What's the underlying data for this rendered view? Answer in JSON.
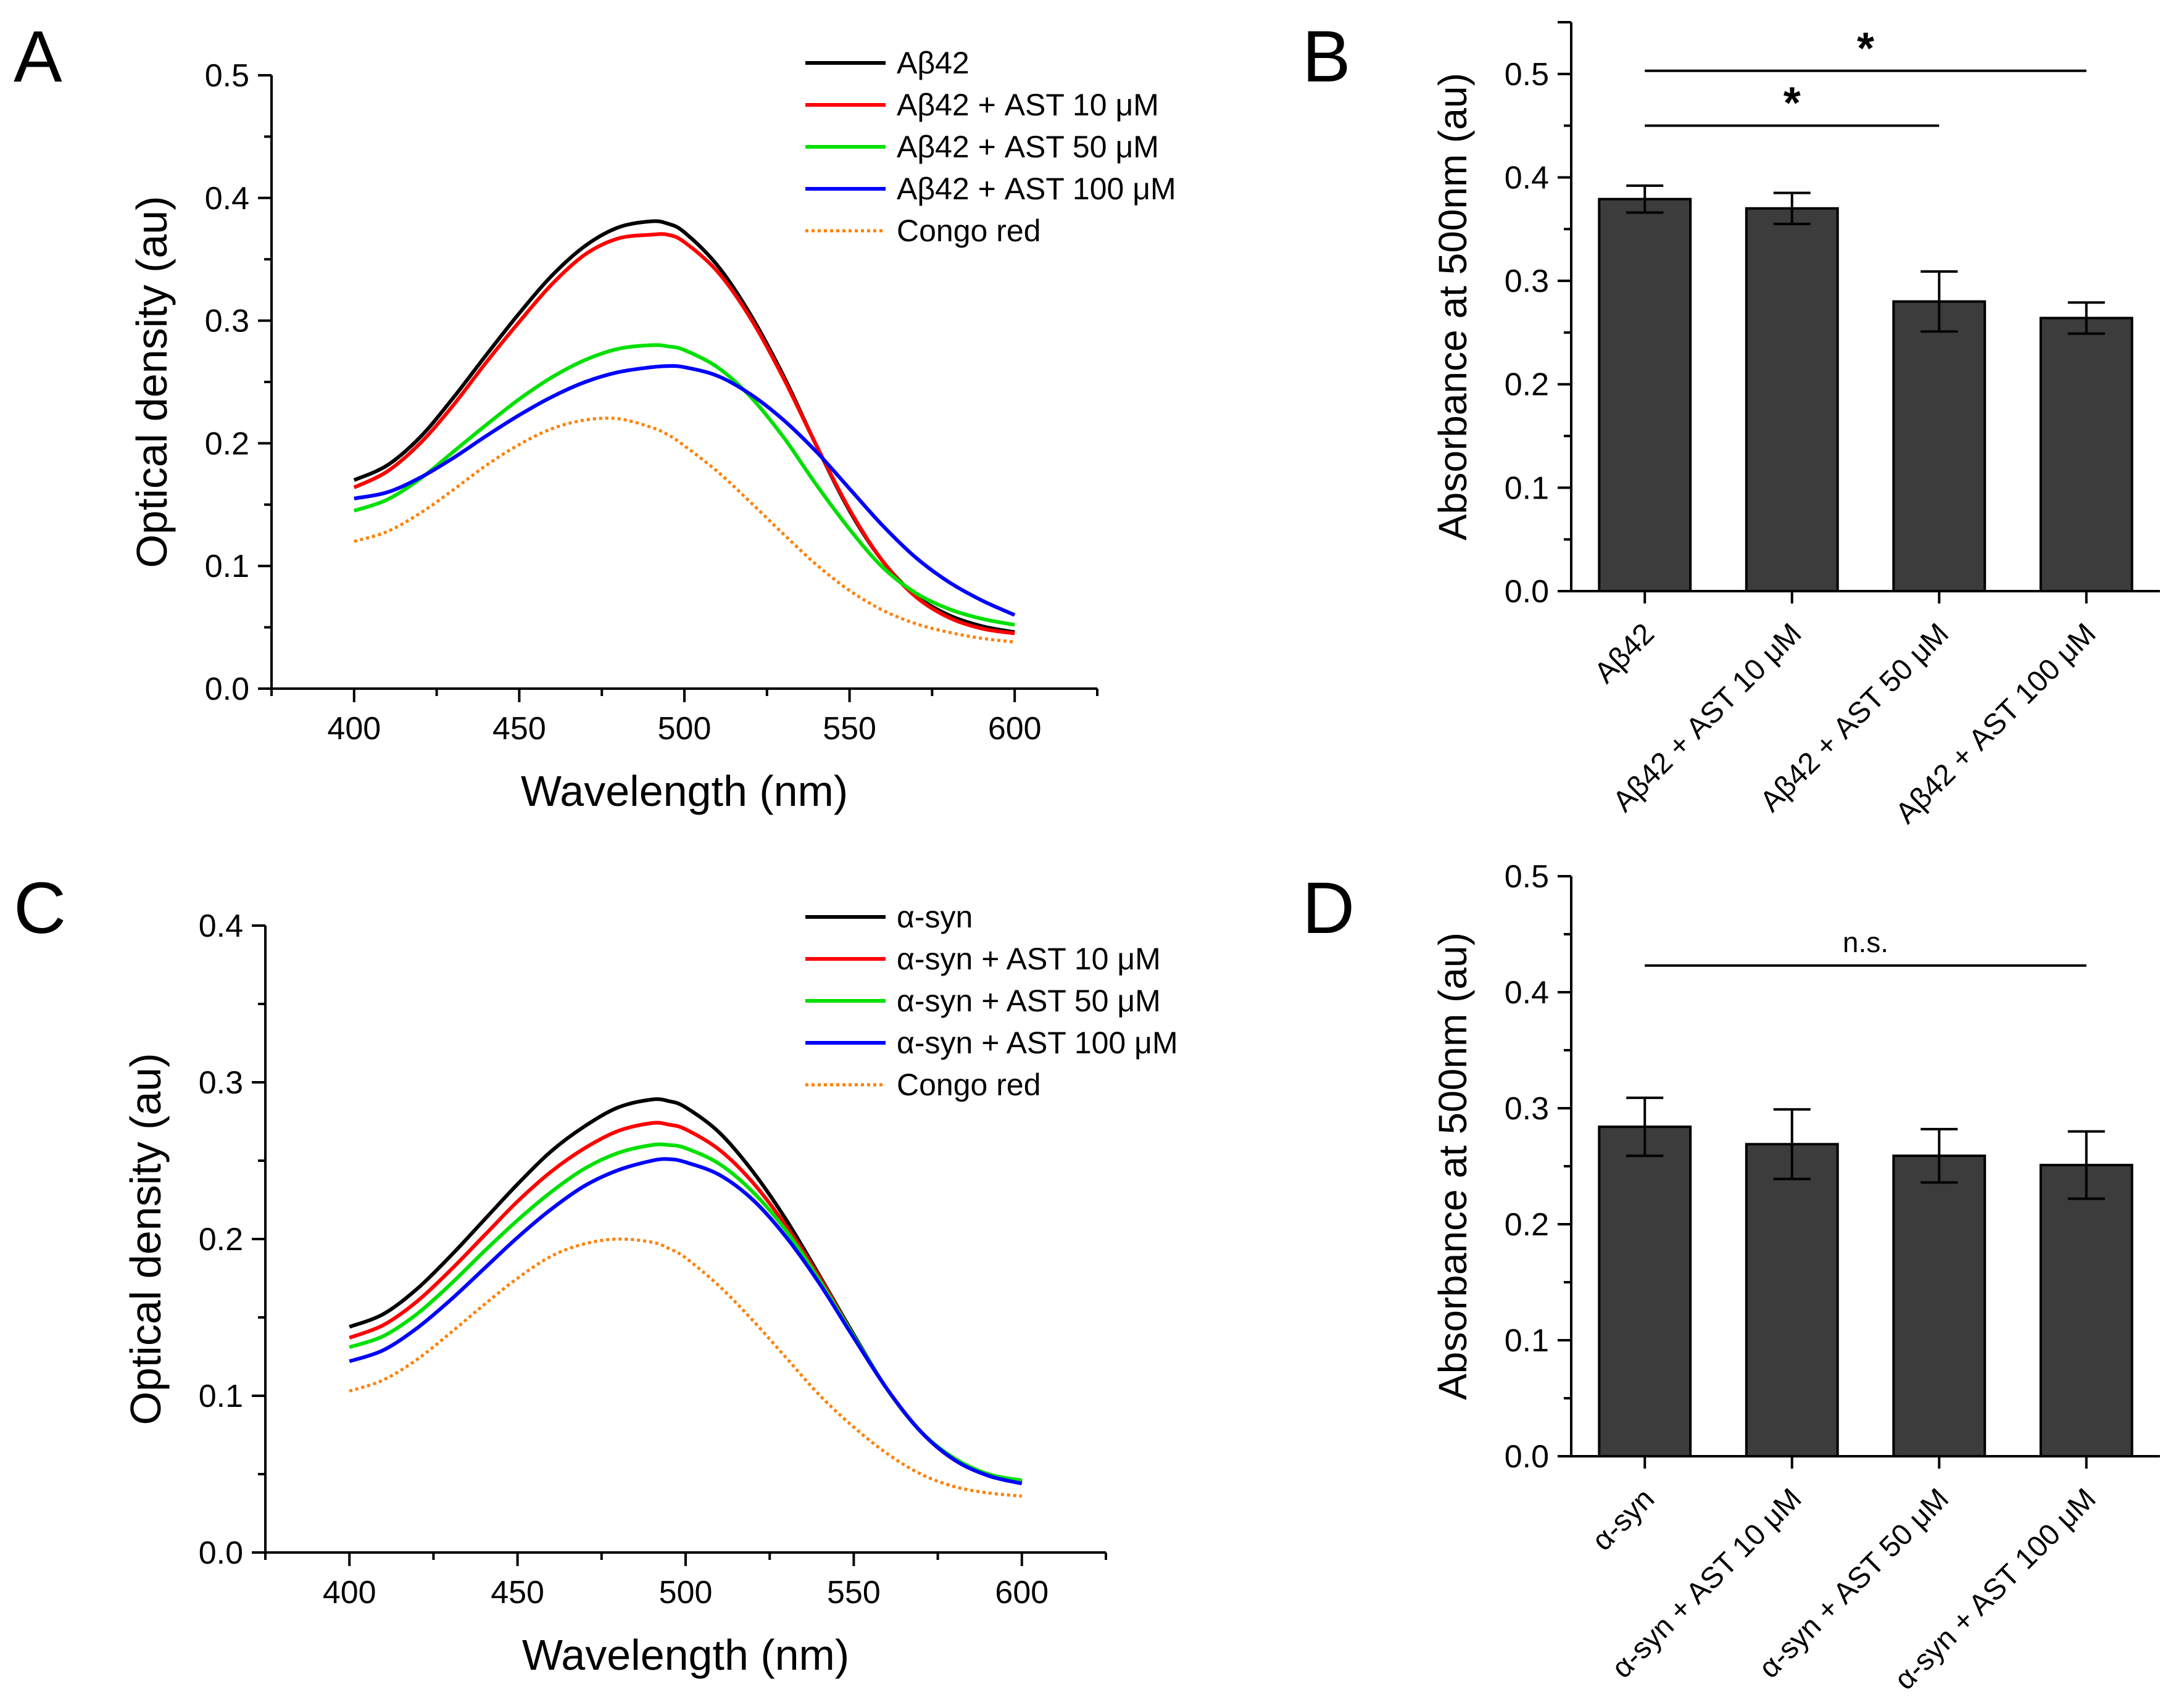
{
  "colors": {
    "black": "#000000",
    "red": "#ff0000",
    "green": "#00e000",
    "blue": "#0000ff",
    "orange": "#ff8000",
    "bar_fill": "#3c3c3c"
  },
  "chart_data": [
    {
      "panel": "A",
      "type": "line",
      "title": "",
      "xlabel": "Wavelength (nm)",
      "ylabel": "Optical density (au)",
      "xlim": [
        375,
        625
      ],
      "ylim": [
        0,
        0.5
      ],
      "xticks": [
        "400",
        "450",
        "500",
        "550",
        "600"
      ],
      "yticks": [
        "0.0",
        "0.1",
        "0.2",
        "0.3",
        "0.4",
        "0.5"
      ],
      "legend_position": "top-right",
      "x": [
        400,
        410,
        420,
        430,
        440,
        450,
        460,
        470,
        480,
        490,
        495,
        500,
        510,
        520,
        530,
        540,
        550,
        560,
        570,
        580,
        590,
        600
      ],
      "series": [
        {
          "name": "Aβ42",
          "color": "black",
          "dash": "solid",
          "values": [
            0.17,
            0.182,
            0.205,
            0.237,
            0.272,
            0.306,
            0.337,
            0.361,
            0.376,
            0.381,
            0.379,
            0.372,
            0.345,
            0.305,
            0.255,
            0.198,
            0.145,
            0.104,
            0.076,
            0.06,
            0.051,
            0.046
          ]
        },
        {
          "name": "Aβ42 + AST 10 μM",
          "color": "red",
          "dash": "solid",
          "values": [
            0.164,
            0.177,
            0.2,
            0.231,
            0.266,
            0.299,
            0.33,
            0.354,
            0.367,
            0.37,
            0.37,
            0.364,
            0.34,
            0.302,
            0.253,
            0.198,
            0.146,
            0.104,
            0.075,
            0.058,
            0.049,
            0.045
          ]
        },
        {
          "name": "Aβ42 + AST 50 μM",
          "color": "green",
          "dash": "solid",
          "values": [
            0.145,
            0.154,
            0.171,
            0.193,
            0.215,
            0.236,
            0.254,
            0.268,
            0.277,
            0.28,
            0.279,
            0.276,
            0.262,
            0.238,
            0.205,
            0.166,
            0.13,
            0.099,
            0.078,
            0.065,
            0.057,
            0.052
          ]
        },
        {
          "name": "Aβ42 + AST 100 μM",
          "color": "blue",
          "dash": "solid",
          "values": [
            0.155,
            0.16,
            0.172,
            0.188,
            0.206,
            0.223,
            0.238,
            0.25,
            0.258,
            0.262,
            0.263,
            0.262,
            0.255,
            0.24,
            0.219,
            0.193,
            0.163,
            0.133,
            0.107,
            0.087,
            0.072,
            0.06
          ]
        },
        {
          "name": "Congo red",
          "color": "orange",
          "dash": "dotted",
          "values": [
            0.12,
            0.128,
            0.143,
            0.162,
            0.182,
            0.199,
            0.212,
            0.219,
            0.22,
            0.213,
            0.207,
            0.198,
            0.177,
            0.152,
            0.126,
            0.101,
            0.08,
            0.064,
            0.053,
            0.046,
            0.041,
            0.038
          ]
        }
      ]
    },
    {
      "panel": "B",
      "type": "bar",
      "title": "",
      "xlabel": "",
      "ylabel": "Absorbance at 500nm (au)",
      "ylim": [
        0,
        0.55
      ],
      "yticks": [
        "0.0",
        "0.1",
        "0.2",
        "0.3",
        "0.4",
        "0.5"
      ],
      "categories": [
        "Aβ42",
        "Aβ42 + AST 10 μM",
        "Aβ42 + AST 50 μM",
        "Aβ42 + AST 100 μM"
      ],
      "values": [
        0.379,
        0.37,
        0.28,
        0.264
      ],
      "errors": [
        0.013,
        0.015,
        0.029,
        0.015
      ],
      "significance": [
        {
          "from": 0,
          "to": 3,
          "y": 0.503,
          "label": "*"
        },
        {
          "from": 0,
          "to": 2,
          "y": 0.45,
          "label": "*"
        }
      ]
    },
    {
      "panel": "C",
      "type": "line",
      "title": "",
      "xlabel": "Wavelength (nm)",
      "ylabel": "Optical density (au)",
      "xlim": [
        375,
        625
      ],
      "ylim": [
        0,
        0.4
      ],
      "xticks": [
        "400",
        "450",
        "500",
        "550",
        "600"
      ],
      "yticks": [
        "0.0",
        "0.1",
        "0.2",
        "0.3",
        "0.4"
      ],
      "legend_position": "top-right",
      "x": [
        400,
        410,
        420,
        430,
        440,
        450,
        460,
        470,
        480,
        490,
        495,
        500,
        510,
        520,
        530,
        540,
        550,
        560,
        570,
        580,
        590,
        600
      ],
      "series": [
        {
          "name": "α-syn",
          "color": "black",
          "dash": "solid",
          "values": [
            0.144,
            0.152,
            0.168,
            0.189,
            0.212,
            0.235,
            0.256,
            0.272,
            0.284,
            0.289,
            0.288,
            0.284,
            0.268,
            0.243,
            0.212,
            0.176,
            0.139,
            0.104,
            0.077,
            0.059,
            0.05,
            0.045
          ]
        },
        {
          "name": "α-syn + AST 10 μM",
          "color": "red",
          "dash": "solid",
          "values": [
            0.137,
            0.145,
            0.16,
            0.18,
            0.202,
            0.224,
            0.243,
            0.258,
            0.269,
            0.274,
            0.273,
            0.27,
            0.257,
            0.236,
            0.208,
            0.175,
            0.138,
            0.104,
            0.077,
            0.059,
            0.05,
            0.045
          ]
        },
        {
          "name": "α-syn + AST 50 μM",
          "color": "green",
          "dash": "solid",
          "values": [
            0.131,
            0.138,
            0.152,
            0.171,
            0.192,
            0.212,
            0.23,
            0.245,
            0.255,
            0.26,
            0.26,
            0.258,
            0.248,
            0.23,
            0.205,
            0.173,
            0.138,
            0.104,
            0.077,
            0.06,
            0.05,
            0.046
          ]
        },
        {
          "name": "α-syn + AST 100 μM",
          "color": "blue",
          "dash": "solid",
          "values": [
            0.122,
            0.129,
            0.143,
            0.161,
            0.181,
            0.201,
            0.219,
            0.234,
            0.244,
            0.25,
            0.251,
            0.249,
            0.241,
            0.225,
            0.201,
            0.171,
            0.137,
            0.104,
            0.077,
            0.059,
            0.049,
            0.044
          ]
        },
        {
          "name": "Congo red",
          "color": "orange",
          "dash": "dotted",
          "values": [
            0.103,
            0.11,
            0.123,
            0.14,
            0.158,
            0.175,
            0.189,
            0.197,
            0.2,
            0.198,
            0.194,
            0.188,
            0.17,
            0.148,
            0.124,
            0.1,
            0.08,
            0.063,
            0.05,
            0.042,
            0.038,
            0.036
          ]
        }
      ]
    },
    {
      "panel": "D",
      "type": "bar",
      "title": "",
      "xlabel": "",
      "ylabel": "Absorbance at 500nm (au)",
      "ylim": [
        0,
        0.5
      ],
      "yticks": [
        "0.0",
        "0.1",
        "0.2",
        "0.3",
        "0.4",
        "0.5"
      ],
      "categories": [
        "α-syn",
        "α-syn + AST 10 μM",
        "α-syn + AST 50 μM",
        "α-syn + AST 100 μM"
      ],
      "values": [
        0.284,
        0.269,
        0.259,
        0.251
      ],
      "errors": [
        0.025,
        0.03,
        0.023,
        0.029
      ],
      "significance": [
        {
          "from": 0,
          "to": 3,
          "y": 0.423,
          "label": "n.s."
        }
      ]
    }
  ]
}
